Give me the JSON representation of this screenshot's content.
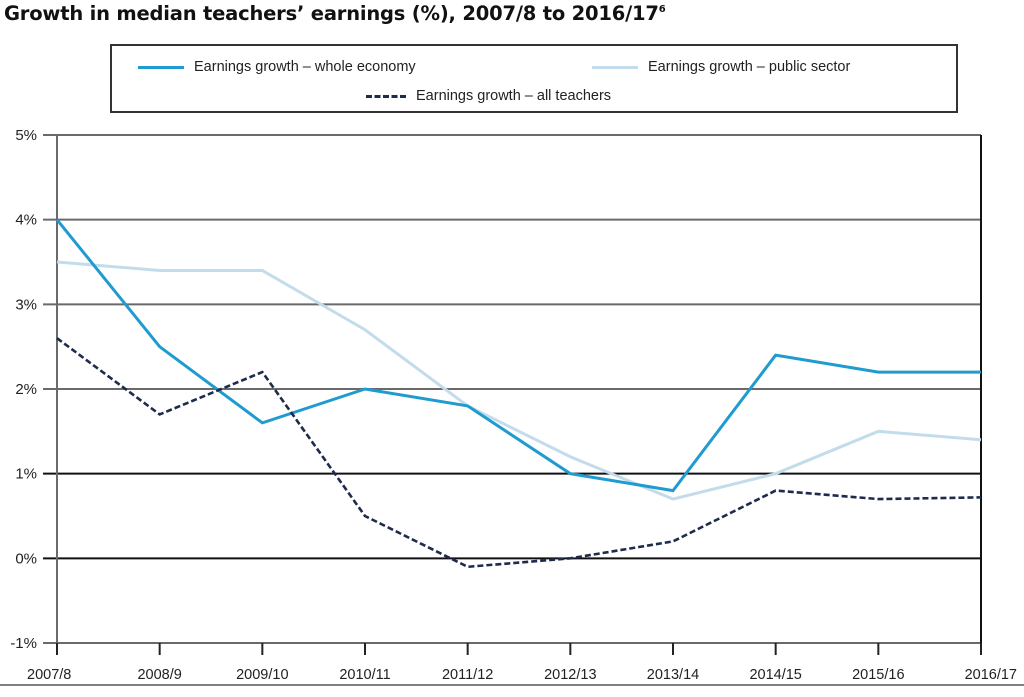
{
  "title": {
    "text": "Growth in median teachers’ earnings (%), 2007/8 to 2016/17",
    "footnote": "6"
  },
  "legend": {
    "items": [
      {
        "label": "Earnings growth – whole economy",
        "color": "#1f9bcf",
        "style": "solid"
      },
      {
        "label": "Earnings growth – public sector",
        "color": "#c3dcec",
        "style": "solid"
      },
      {
        "label": "Earnings growth – all teachers",
        "color": "#1d2b4c",
        "style": "dashed"
      }
    ]
  },
  "chart_data": {
    "type": "line",
    "title": "Growth in median teachers’ earnings (%), 2007/8 to 2016/17",
    "xlabel": "",
    "ylabel": "",
    "categories": [
      "2007/8",
      "2008/9",
      "2009/10",
      "2010/11",
      "2011/12",
      "2012/13",
      "2013/14",
      "2014/15",
      "2015/16",
      "2016/17"
    ],
    "y_ticks": [
      "-1%",
      "0%",
      "1%",
      "2%",
      "3%",
      "4%",
      "5%"
    ],
    "ylim": [
      -1,
      5
    ],
    "grid": true,
    "legend_position": "top",
    "series": [
      {
        "name": "Earnings growth – whole economy",
        "color": "#1f9bcf",
        "style": "solid",
        "values": [
          4.0,
          2.5,
          1.6,
          2.0,
          1.8,
          1.0,
          0.8,
          2.4,
          2.2,
          2.2
        ]
      },
      {
        "name": "Earnings growth – public sector",
        "color": "#c3dcec",
        "style": "solid",
        "values": [
          3.5,
          3.4,
          3.4,
          2.7,
          1.8,
          1.2,
          0.7,
          1.0,
          1.5,
          1.4
        ]
      },
      {
        "name": "Earnings growth – all teachers",
        "color": "#1d2b4c",
        "style": "dashed",
        "values": [
          2.6,
          1.7,
          2.2,
          0.5,
          -0.1,
          0.0,
          0.2,
          0.8,
          0.7,
          0.72
        ]
      }
    ]
  }
}
